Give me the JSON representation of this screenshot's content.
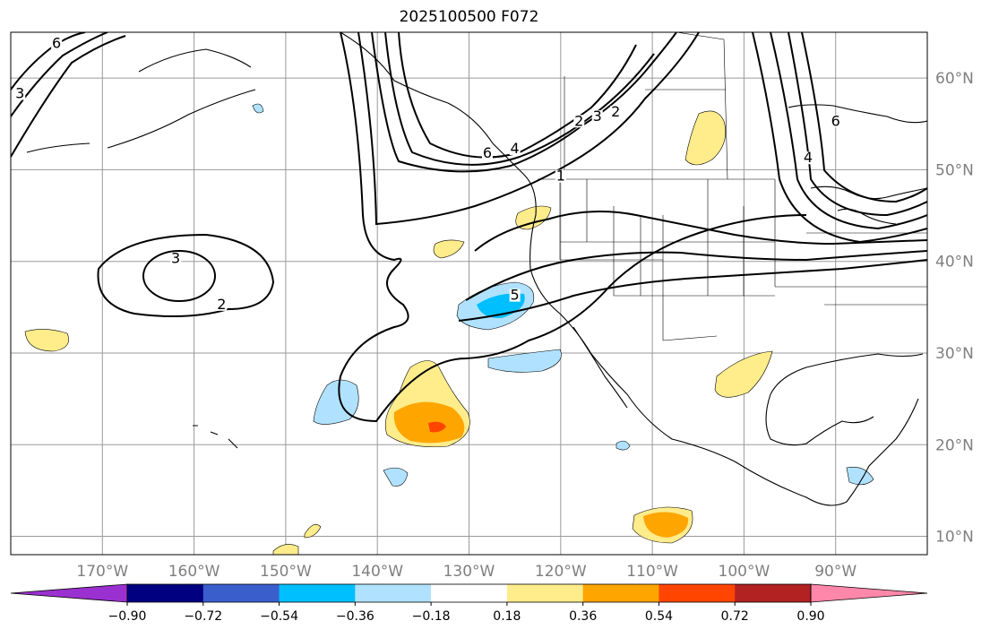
{
  "title": "2025100500 F072",
  "lat_labels": [
    "60°N",
    "50°N",
    "40°N",
    "30°N",
    "20°N",
    "10°N"
  ],
  "lat_values": [
    60,
    50,
    40,
    30,
    20,
    10
  ],
  "lon_labels": [
    "170°W",
    "160°W",
    "150°W",
    "140°W",
    "130°W",
    "120°W",
    "110°W",
    "100°W",
    "90°W"
  ],
  "lon_values": [
    -170,
    -160,
    -150,
    -140,
    -130,
    -120,
    -110,
    -100,
    -90
  ],
  "extent": {
    "lon_min": -180,
    "lon_max": -80,
    "lat_min": 8,
    "lat_max": 65
  },
  "colorbar": {
    "tick_labels": [
      "−0.90",
      "−0.72",
      "−0.54",
      "−0.36",
      "−0.18",
      "0.18",
      "0.36",
      "0.54",
      "0.72",
      "0.90"
    ],
    "colors": [
      "#9b30d0",
      "#000080",
      "#3a5fcd",
      "#00bfff",
      "#b0e2ff",
      "#ffffff",
      "#ffec8b",
      "#ffa500",
      "#ff4500",
      "#b22222",
      "#ff88aa"
    ],
    "extend": "both"
  },
  "contour_labels": [
    {
      "text": "3",
      "lon": -162,
      "lat": 40
    },
    {
      "text": "2",
      "lon": -157,
      "lat": 35
    },
    {
      "text": "6",
      "lon": -175,
      "lat": 63.5
    },
    {
      "text": "3",
      "lon": -179,
      "lat": 58
    },
    {
      "text": "5",
      "lon": -125,
      "lat": 36
    },
    {
      "text": "6",
      "lon": -128,
      "lat": 51.5
    },
    {
      "text": "4",
      "lon": -125,
      "lat": 52
    },
    {
      "text": "1",
      "lon": -120,
      "lat": 49
    },
    {
      "text": "2",
      "lon": -118,
      "lat": 55
    },
    {
      "text": "3",
      "lon": -116,
      "lat": 55.5
    },
    {
      "text": "2",
      "lon": -114,
      "lat": 56
    },
    {
      "text": "6",
      "lon": -90,
      "lat": 55
    },
    {
      "text": "4",
      "lon": -93,
      "lat": 51
    }
  ]
}
